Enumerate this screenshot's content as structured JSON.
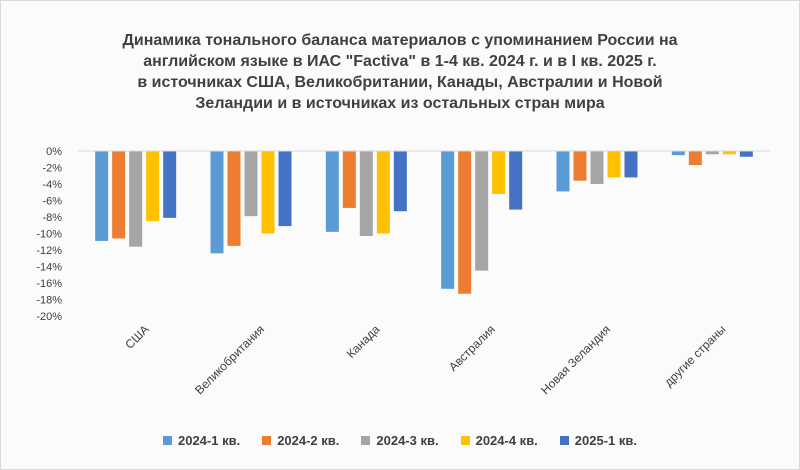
{
  "title_lines": [
    "Динамика тонального баланса материалов с упоминанием России на",
    "английском языке в ИАС \"Factiva\" в 1-4 кв. 2024 г. и в I кв. 2025 г.",
    "в источниках США, Великобритании, Канады, Австралии и Новой",
    "Зеландии и в источниках из остальных стран мира"
  ],
  "chart_data": {
    "type": "bar",
    "categories": [
      "США",
      "Великобритания",
      "Канада",
      "Австралия",
      "Новая Зеландия",
      "другие страны"
    ],
    "series": [
      {
        "name": "2024-1 кв.",
        "color": "#5b9bd5",
        "values": [
          -10.9,
          -12.4,
          -9.8,
          -16.7,
          -4.9,
          -0.5
        ]
      },
      {
        "name": "2024-2 кв.",
        "color": "#ed7d31",
        "values": [
          -10.6,
          -11.5,
          -6.9,
          -17.3,
          -3.6,
          -1.7
        ]
      },
      {
        "name": "2024-3 кв.",
        "color": "#a5a5a5",
        "values": [
          -11.6,
          -7.9,
          -10.3,
          -14.5,
          -4.0,
          -0.4
        ]
      },
      {
        "name": "2024-4 кв.",
        "color": "#ffc000",
        "values": [
          -8.5,
          -10.0,
          -10.0,
          -5.2,
          -3.2,
          -0.4
        ]
      },
      {
        "name": "2025-1 кв.",
        "color": "#4472c4",
        "values": [
          -8.1,
          -9.1,
          -7.3,
          -7.1,
          -3.2,
          -0.7
        ]
      }
    ],
    "ylim": [
      -20,
      0
    ],
    "yticks": [
      "0%",
      "-2%",
      "-4%",
      "-6%",
      "-8%",
      "-10%",
      "-12%",
      "-14%",
      "-16%",
      "-18%",
      "-20%"
    ],
    "grid": false,
    "legend_position": "bottom"
  }
}
